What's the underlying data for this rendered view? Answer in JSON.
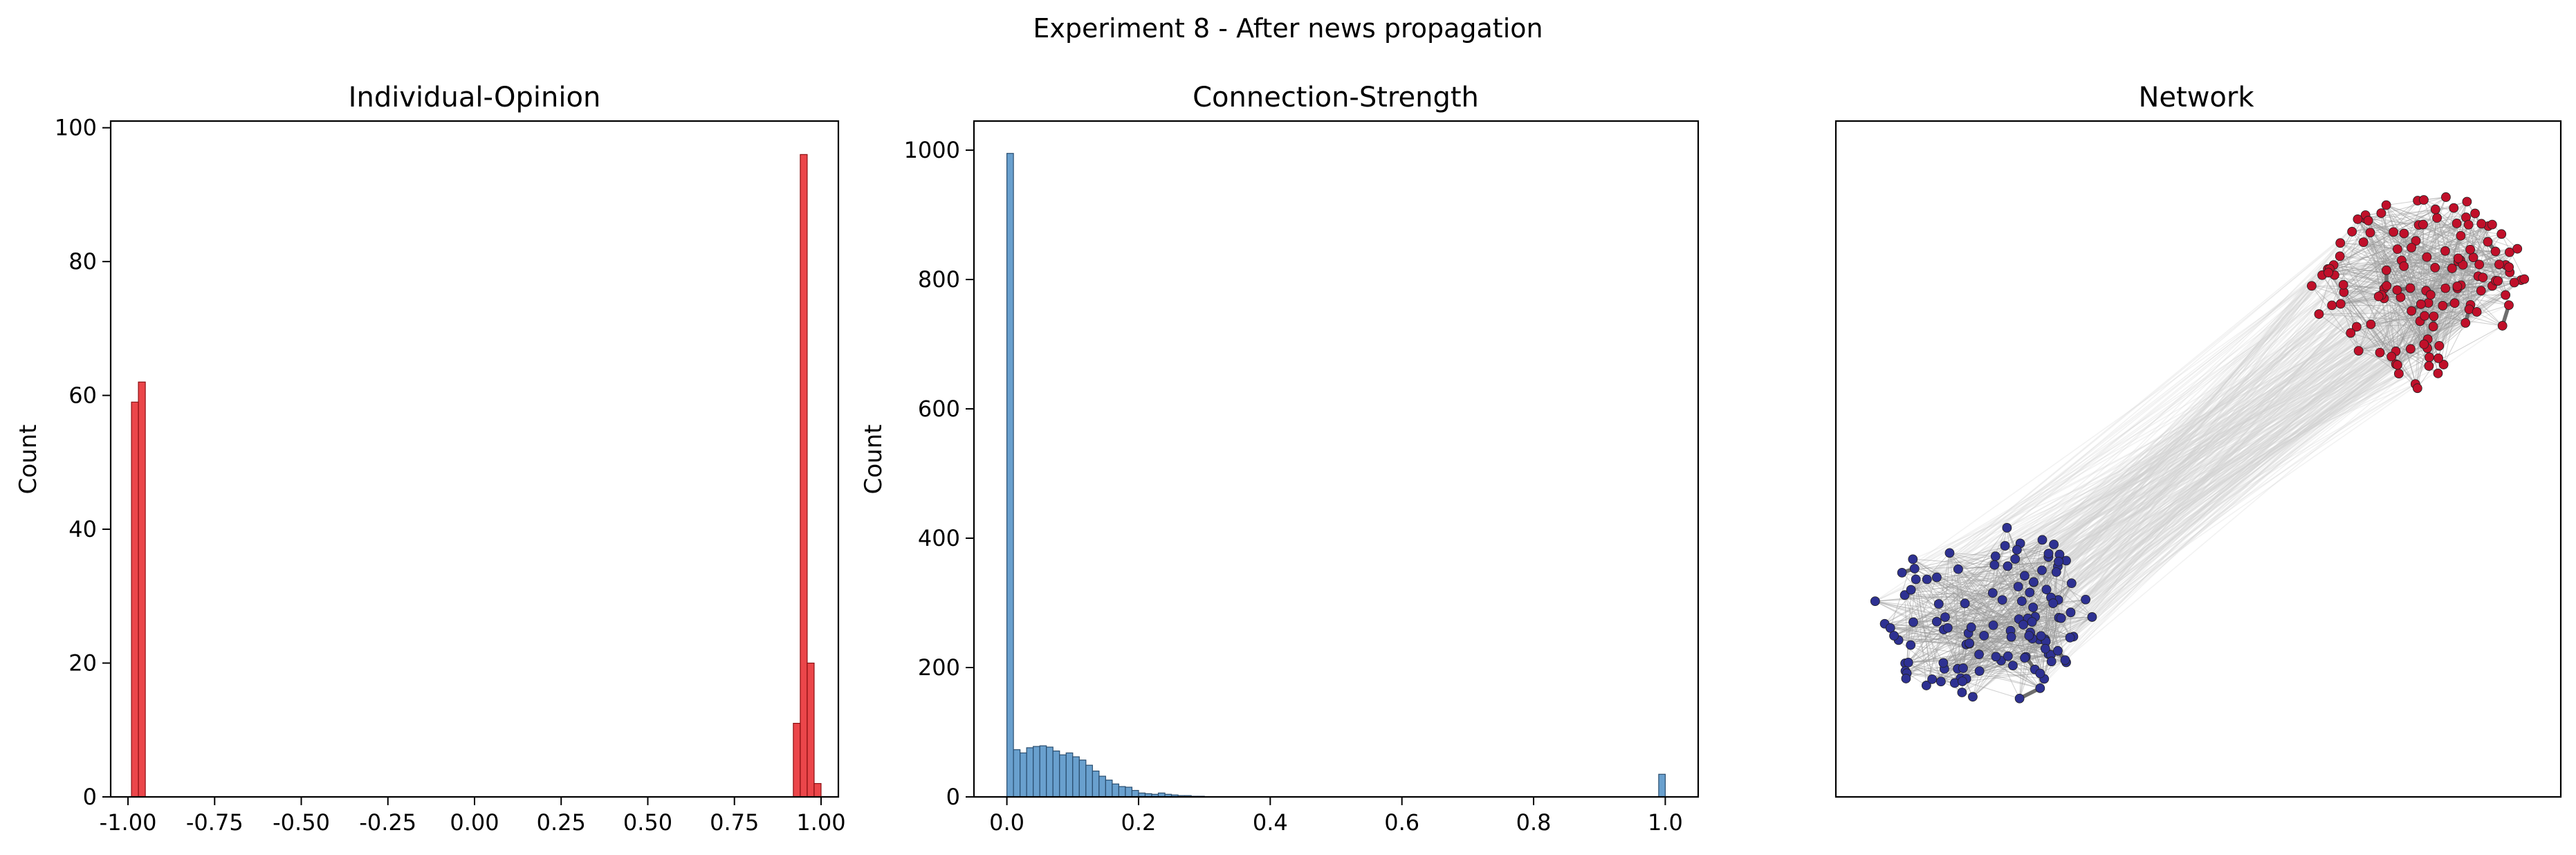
{
  "figure": {
    "suptitle": "Experiment 8 - After news propagation"
  },
  "colors": {
    "opinion_bar": "#e8262a",
    "opinion_edge": "#8b0f12",
    "strength_bar": "#4f8fc6",
    "strength_edge": "#2a4d6e",
    "node_positive": "#c0102a",
    "node_negative": "#2e3192",
    "edge_light": "#cfcfcf",
    "edge_strong": "#6e6e6e"
  },
  "chart_data": [
    {
      "type": "bar",
      "panel": "histogram",
      "title": "Individual-Opinion",
      "xlabel": "",
      "ylabel": "Count",
      "xlim": [
        -1.05,
        1.05
      ],
      "ylim": [
        0,
        101
      ],
      "bin_width": 0.02,
      "xticks": [
        "-1.00",
        "-0.75",
        "-0.50",
        "-0.25",
        "0.00",
        "0.25",
        "0.50",
        "0.75",
        "1.00"
      ],
      "xtick_values": [
        -1.0,
        -0.75,
        -0.5,
        -0.25,
        0.0,
        0.25,
        0.5,
        0.75,
        1.0
      ],
      "yticks": [
        "0",
        "20",
        "40",
        "60",
        "80",
        "100"
      ],
      "ytick_values": [
        0,
        20,
        40,
        60,
        80,
        100
      ],
      "bins": [
        {
          "x": -0.98,
          "count": 59
        },
        {
          "x": -0.96,
          "count": 62
        },
        {
          "x": 0.93,
          "count": 11
        },
        {
          "x": 0.95,
          "count": 96
        },
        {
          "x": 0.97,
          "count": 20
        },
        {
          "x": 0.99,
          "count": 2
        }
      ]
    },
    {
      "type": "bar",
      "panel": "histogram",
      "title": "Connection-Strength",
      "xlabel": "",
      "ylabel": "Count",
      "xlim": [
        -0.05,
        1.05
      ],
      "ylim": [
        0,
        1045
      ],
      "bin_width": 0.01,
      "xticks": [
        "0.0",
        "0.2",
        "0.4",
        "0.6",
        "0.8",
        "1.0"
      ],
      "xtick_values": [
        0.0,
        0.2,
        0.4,
        0.6,
        0.8,
        1.0
      ],
      "yticks": [
        "0",
        "200",
        "400",
        "600",
        "800",
        "1000"
      ],
      "ytick_values": [
        0,
        200,
        400,
        600,
        800,
        1000
      ],
      "bins": [
        {
          "x": 0.005,
          "count": 995
        },
        {
          "x": 0.015,
          "count": 73
        },
        {
          "x": 0.025,
          "count": 68
        },
        {
          "x": 0.035,
          "count": 76
        },
        {
          "x": 0.045,
          "count": 78
        },
        {
          "x": 0.055,
          "count": 79
        },
        {
          "x": 0.065,
          "count": 77
        },
        {
          "x": 0.075,
          "count": 71
        },
        {
          "x": 0.085,
          "count": 65
        },
        {
          "x": 0.095,
          "count": 68
        },
        {
          "x": 0.105,
          "count": 62
        },
        {
          "x": 0.115,
          "count": 57
        },
        {
          "x": 0.125,
          "count": 49
        },
        {
          "x": 0.135,
          "count": 40
        },
        {
          "x": 0.145,
          "count": 32
        },
        {
          "x": 0.155,
          "count": 26
        },
        {
          "x": 0.165,
          "count": 20
        },
        {
          "x": 0.175,
          "count": 16
        },
        {
          "x": 0.185,
          "count": 15
        },
        {
          "x": 0.195,
          "count": 10
        },
        {
          "x": 0.205,
          "count": 6
        },
        {
          "x": 0.215,
          "count": 5
        },
        {
          "x": 0.225,
          "count": 4
        },
        {
          "x": 0.235,
          "count": 6
        },
        {
          "x": 0.245,
          "count": 4
        },
        {
          "x": 0.255,
          "count": 3
        },
        {
          "x": 0.265,
          "count": 2
        },
        {
          "x": 0.275,
          "count": 2
        },
        {
          "x": 0.285,
          "count": 1
        },
        {
          "x": 0.295,
          "count": 1
        },
        {
          "x": 0.995,
          "count": 35
        }
      ]
    },
    {
      "type": "network",
      "title": "Network",
      "axes": "hidden",
      "clusters": [
        {
          "label": "positive opinion",
          "color": "node_positive",
          "nodes": 129,
          "location": "upper-right"
        },
        {
          "label": "negative opinion",
          "color": "node_negative",
          "nodes": 121,
          "location": "lower-left"
        }
      ]
    }
  ]
}
